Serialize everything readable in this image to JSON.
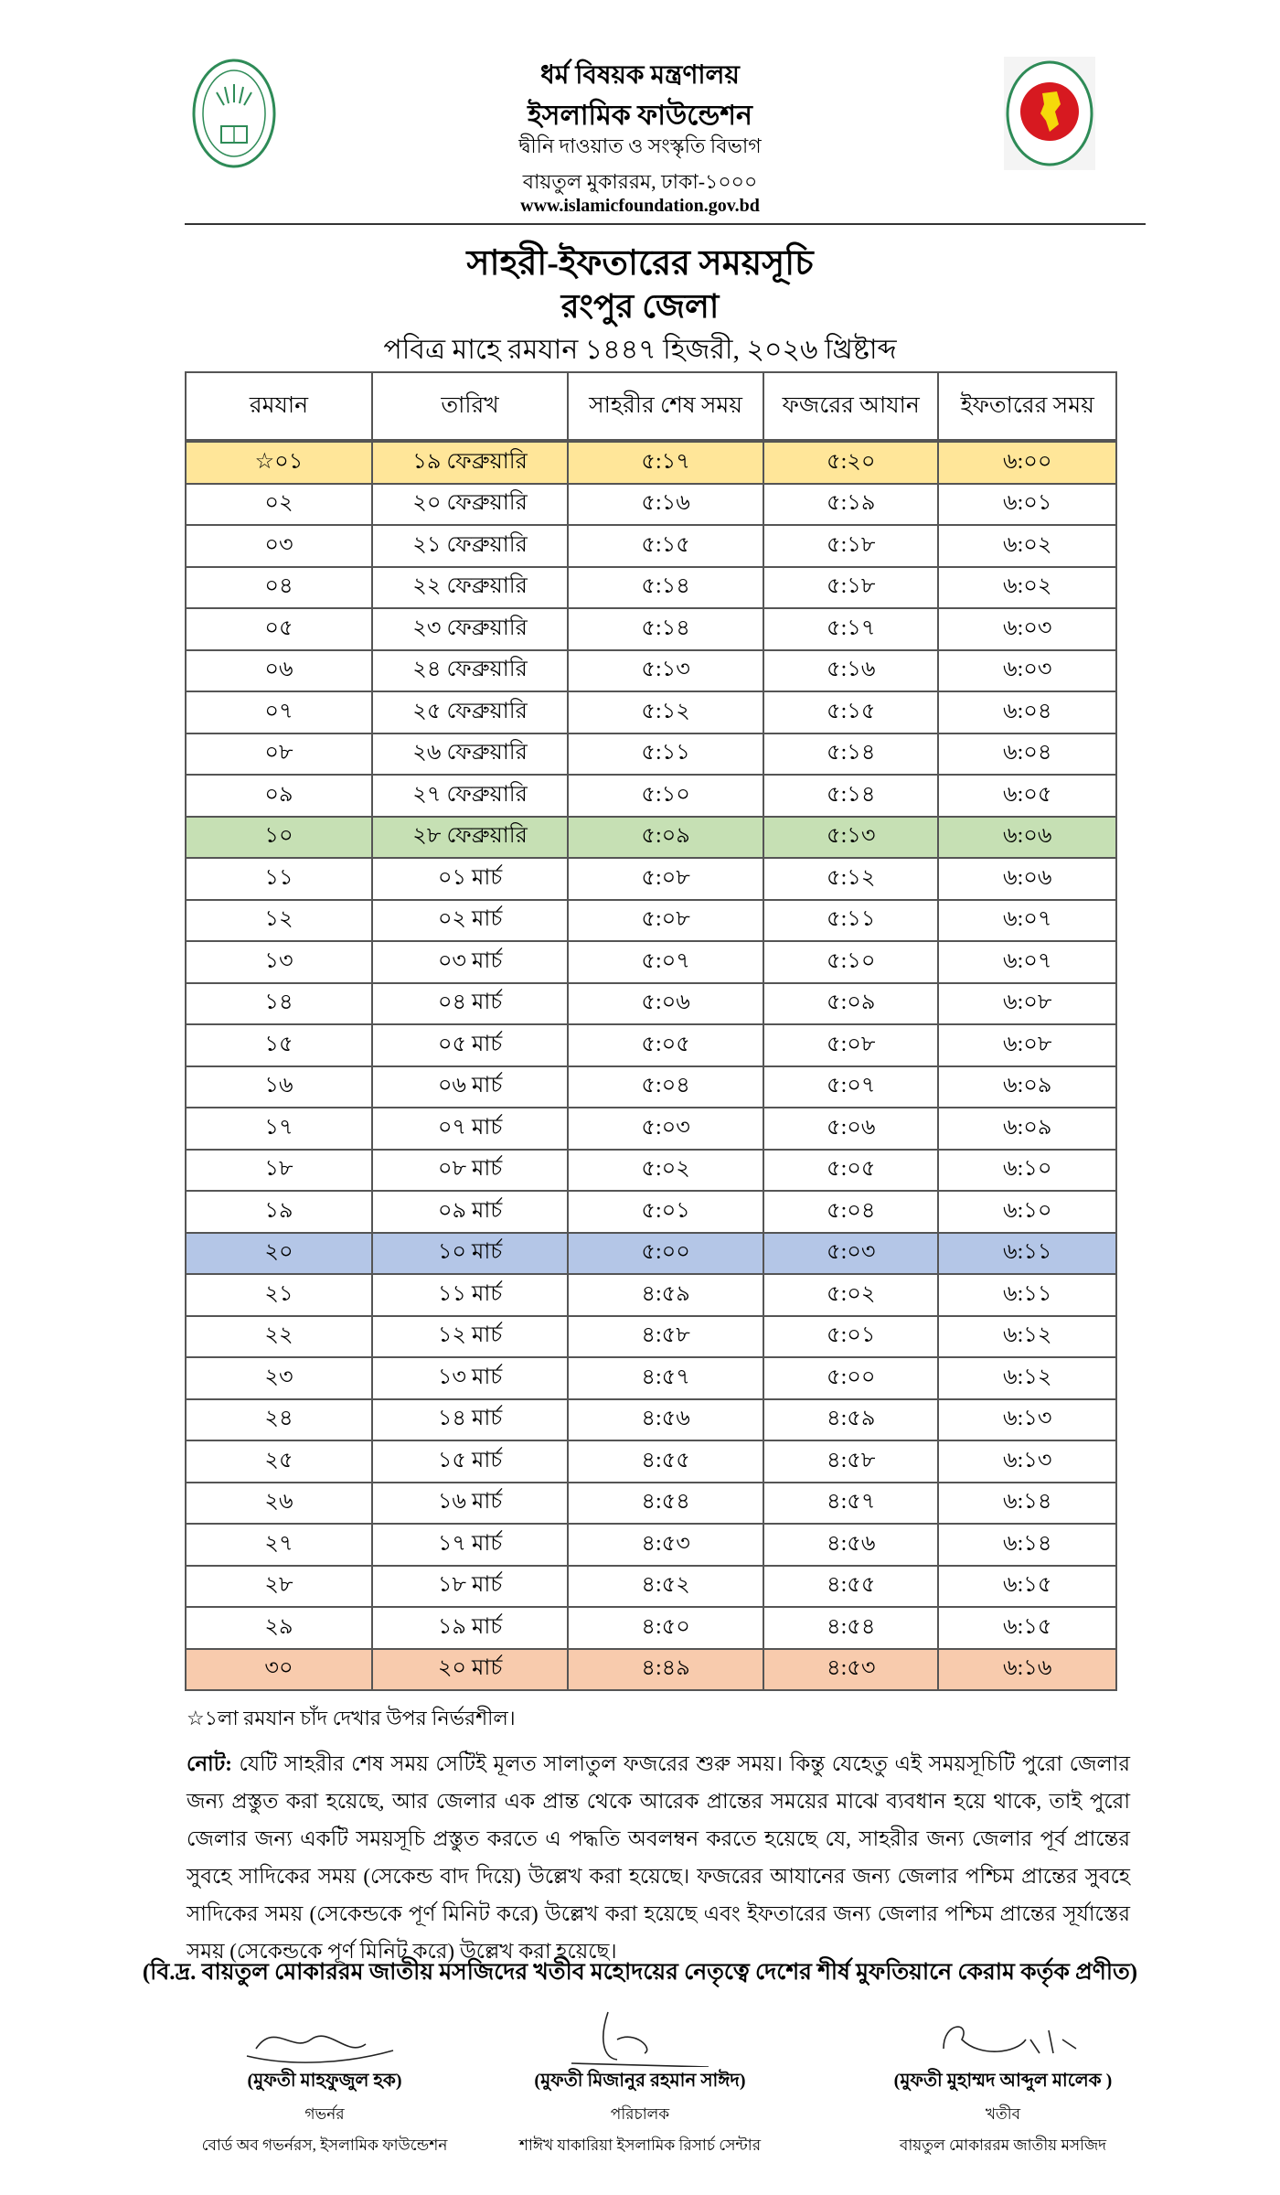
{
  "header": {
    "ministry": "ধর্ম বিষয়ক মন্ত্রণালয়",
    "organization": "ইসলামিক ফাউন্ডেশন",
    "department": "দ্বীনি দাওয়াত ও সংস্কৃতি বিভাগ",
    "address": "বায়তুল মুকাররম, ঢাকা-১০০০",
    "website": "www.islamicfoundation.gov.bd",
    "left_logo": "islamic-foundation-seal",
    "right_logo": "bangladesh-government-seal"
  },
  "title": {
    "main": "সাহরী-ইফতারের সময়সূচি",
    "district": "রংপুর জেলা",
    "subtitle": "পবিত্র মাহে রমযান ১৪৪৭ হিজরী, ২০২৬ খ্রিষ্টাব্দ"
  },
  "table": {
    "columns": [
      "রমযান",
      "তারিখ",
      "সাহরীর শেষ সময়",
      "ফজরের আযান",
      "ইফতারের সময়"
    ],
    "highlight_colors": {
      "yellow": "#ffe699",
      "green": "#c6e0b4",
      "blue": "#b4c6e7",
      "orange": "#f8cbad"
    },
    "rows": [
      {
        "ramadan": "☆০১",
        "date": "১৯ ফেব্রুয়ারি",
        "sehri": "৫:১৭",
        "fajr": "৫:২০",
        "iftar": "৬:০০",
        "highlight": "yellow"
      },
      {
        "ramadan": "০২",
        "date": "২০ ফেব্রুয়ারি",
        "sehri": "৫:১৬",
        "fajr": "৫:১৯",
        "iftar": "৬:০১"
      },
      {
        "ramadan": "০৩",
        "date": "২১ ফেব্রুয়ারি",
        "sehri": "৫:১৫",
        "fajr": "৫:১৮",
        "iftar": "৬:০২"
      },
      {
        "ramadan": "০৪",
        "date": "২২ ফেব্রুয়ারি",
        "sehri": "৫:১৪",
        "fajr": "৫:১৮",
        "iftar": "৬:০২"
      },
      {
        "ramadan": "০৫",
        "date": "২৩ ফেব্রুয়ারি",
        "sehri": "৫:১৪",
        "fajr": "৫:১৭",
        "iftar": "৬:০৩"
      },
      {
        "ramadan": "০৬",
        "date": "২৪ ফেব্রুয়ারি",
        "sehri": "৫:১৩",
        "fajr": "৫:১৬",
        "iftar": "৬:০৩"
      },
      {
        "ramadan": "০৭",
        "date": "২৫ ফেব্রুয়ারি",
        "sehri": "৫:১২",
        "fajr": "৫:১৫",
        "iftar": "৬:০৪"
      },
      {
        "ramadan": "০৮",
        "date": "২৬ ফেব্রুয়ারি",
        "sehri": "৫:১১",
        "fajr": "৫:১৪",
        "iftar": "৬:০৪"
      },
      {
        "ramadan": "০৯",
        "date": "২৭ ফেব্রুয়ারি",
        "sehri": "৫:১০",
        "fajr": "৫:১৪",
        "iftar": "৬:০৫"
      },
      {
        "ramadan": "১০",
        "date": "২৮ ফেব্রুয়ারি",
        "sehri": "৫:০৯",
        "fajr": "৫:১৩",
        "iftar": "৬:০৬",
        "highlight": "green"
      },
      {
        "ramadan": "১১",
        "date": "০১ মার্চ",
        "sehri": "৫:০৮",
        "fajr": "৫:১২",
        "iftar": "৬:০৬"
      },
      {
        "ramadan": "১২",
        "date": "০২ মার্চ",
        "sehri": "৫:০৮",
        "fajr": "৫:১১",
        "iftar": "৬:০৭"
      },
      {
        "ramadan": "১৩",
        "date": "০৩ মার্চ",
        "sehri": "৫:০৭",
        "fajr": "৫:১০",
        "iftar": "৬:০৭"
      },
      {
        "ramadan": "১৪",
        "date": "০৪ মার্চ",
        "sehri": "৫:০৬",
        "fajr": "৫:০৯",
        "iftar": "৬:০৮"
      },
      {
        "ramadan": "১৫",
        "date": "০৫ মার্চ",
        "sehri": "৫:০৫",
        "fajr": "৫:০৮",
        "iftar": "৬:০৮"
      },
      {
        "ramadan": "১৬",
        "date": "০৬ মার্চ",
        "sehri": "৫:০৪",
        "fajr": "৫:০৭",
        "iftar": "৬:০৯"
      },
      {
        "ramadan": "১৭",
        "date": "০৭ মার্চ",
        "sehri": "৫:০৩",
        "fajr": "৫:০৬",
        "iftar": "৬:০৯"
      },
      {
        "ramadan": "১৮",
        "date": "০৮ মার্চ",
        "sehri": "৫:০২",
        "fajr": "৫:০৫",
        "iftar": "৬:১০"
      },
      {
        "ramadan": "১৯",
        "date": "০৯ মার্চ",
        "sehri": "৫:০১",
        "fajr": "৫:০৪",
        "iftar": "৬:১০"
      },
      {
        "ramadan": "২০",
        "date": "১০ মার্চ",
        "sehri": "৫:০০",
        "fajr": "৫:০৩",
        "iftar": "৬:১১",
        "highlight": "blue"
      },
      {
        "ramadan": "২১",
        "date": "১১ মার্চ",
        "sehri": "৪:৫৯",
        "fajr": "৫:০২",
        "iftar": "৬:১১"
      },
      {
        "ramadan": "২২",
        "date": "১২ মার্চ",
        "sehri": "৪:৫৮",
        "fajr": "৫:০১",
        "iftar": "৬:১২"
      },
      {
        "ramadan": "২৩",
        "date": "১৩ মার্চ",
        "sehri": "৪:৫৭",
        "fajr": "৫:০০",
        "iftar": "৬:১২"
      },
      {
        "ramadan": "২৪",
        "date": "১৪ মার্চ",
        "sehri": "৪:৫৬",
        "fajr": "৪:৫৯",
        "iftar": "৬:১৩"
      },
      {
        "ramadan": "২৫",
        "date": "১৫ মার্চ",
        "sehri": "৪:৫৫",
        "fajr": "৪:৫৮",
        "iftar": "৬:১৩"
      },
      {
        "ramadan": "২৬",
        "date": "১৬ মার্চ",
        "sehri": "৪:৫৪",
        "fajr": "৪:৫৭",
        "iftar": "৬:১৪"
      },
      {
        "ramadan": "২৭",
        "date": "১৭ মার্চ",
        "sehri": "৪:৫৩",
        "fajr": "৪:৫৬",
        "iftar": "৬:১৪"
      },
      {
        "ramadan": "২৮",
        "date": "১৮ মার্চ",
        "sehri": "৪:৫২",
        "fajr": "৪:৫৫",
        "iftar": "৬:১৫"
      },
      {
        "ramadan": "২৯",
        "date": "১৯ মার্চ",
        "sehri": "৪:৫০",
        "fajr": "৪:৫৪",
        "iftar": "৬:১৫"
      },
      {
        "ramadan": "৩০",
        "date": "২০ মার্চ",
        "sehri": "৪:৪৯",
        "fajr": "৪:৫৩",
        "iftar": "৬:১৬",
        "highlight": "orange"
      }
    ]
  },
  "footnote": "☆১লা রমযান চাঁদ দেখার উপর নির্ভরশীল।",
  "note": {
    "label": "নোট:",
    "text": " যেটি সাহরীর শেষ সময় সেটিই মূলত সালাতুল ফজরের শুরু সময়। কিন্তু যেহেতু এই সময়সূচিটি পুরো জেলার জন্য প্রস্তুত করা হয়েছে, আর জেলার এক প্রান্ত থেকে আরেক প্রান্তের সময়ের মাঝে ব্যবধান হয়ে থাকে, তাই পুরো জেলার জন্য একটি সময়সূচি প্রস্তুত করতে এ পদ্ধতি অবলম্বন করতে হয়েছে যে, সাহরীর জন্য জেলার পূর্ব প্রান্তের সুবহে সাদিকের সময় (সেকেন্ড বাদ দিয়ে) উল্লেখ করা হয়েছে। ফজরের আযানের জন্য জেলার পশ্চিম প্রান্তের সুবহে সাদিকের সময় (সেকেন্ডকে পূর্ণ মিনিট করে) উল্লেখ করা হয়েছে এবং ইফতারের জন্য জেলার পশ্চিম প্রান্তের সূর্যাস্তের সময় (সেকেন্ডকে পূর্ণ মিনিট করে) উল্লেখ করা হয়েছে।"
  },
  "credit": "(বি.দ্র. বায়তুল মোকাররম জাতীয় মসজিদের খতীব মহোদয়ের নেতৃত্বে দেশের শীর্ষ মুফতিয়ানে কেরাম কর্তৃক প্রণীত)",
  "signatories": [
    {
      "name": "(মুফতী মাহফুজুল হক)",
      "role": "গভর্নর",
      "org": "বোর্ড অব গভর্নরস, ইসলামিক ফাউন্ডেশন"
    },
    {
      "name": "(মুফতী মিজানুর রহমান সাঈদ)",
      "role": "পরিচালক",
      "org": "শাঈখ যাকারিয়া ইসলামিক রিসার্চ সেন্টার"
    },
    {
      "name": "(মুফতী মুহাম্মদ আব্দুল মালেক )",
      "role": "খতীব",
      "org": "বায়তুল মোকাররম জাতীয় মসজিদ"
    }
  ]
}
